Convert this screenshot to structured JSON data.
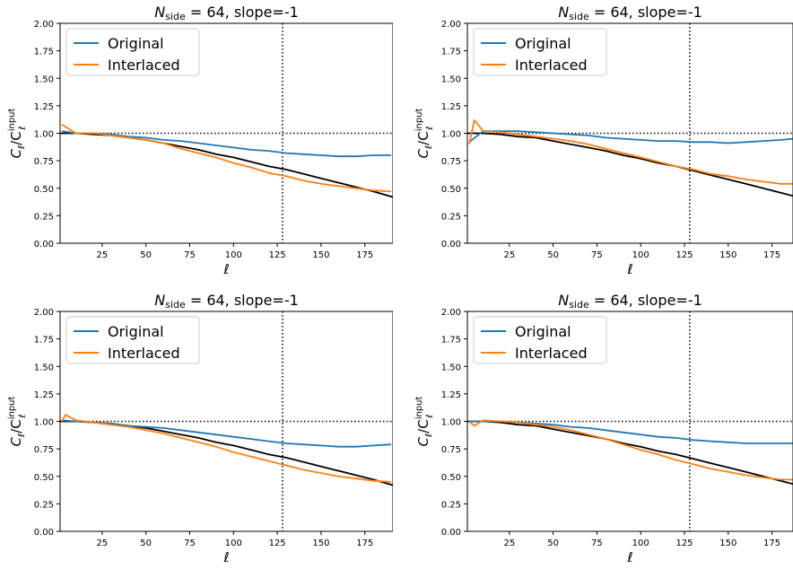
{
  "chart_data": [
    {
      "type": "line",
      "title_main": "N",
      "title_sub": "side",
      "title_rest": " = 64, slope=-1",
      "xlabel": "ℓ",
      "ylabel_main": "C",
      "ylabel_sub": "ℓ",
      "ylabel_sep": "/C",
      "ylabel_sup": "input",
      "ylabel_sub2": "ℓ",
      "xlim": [
        1,
        191
      ],
      "ylim": [
        0,
        2
      ],
      "xticks": [
        "25",
        "50",
        "75",
        "100",
        "125",
        "150",
        "175"
      ],
      "yticks": [
        "0.00",
        "0.25",
        "0.50",
        "0.75",
        "1.00",
        "1.25",
        "1.50",
        "1.75",
        "2.00"
      ],
      "legend_position": "top-left",
      "reference_lines": {
        "hline_y": 1.0,
        "vline_x": 128
      },
      "series": [
        {
          "name": "Original",
          "color": "#1f77b4",
          "x": [
            2,
            10,
            20,
            30,
            40,
            50,
            60,
            70,
            80,
            90,
            100,
            110,
            120,
            130,
            140,
            150,
            160,
            170,
            180,
            190
          ],
          "y": [
            1.02,
            1.0,
            1.0,
            0.99,
            0.97,
            0.96,
            0.94,
            0.93,
            0.91,
            0.89,
            0.87,
            0.85,
            0.84,
            0.82,
            0.81,
            0.8,
            0.79,
            0.79,
            0.8,
            0.8
          ]
        },
        {
          "name": "Interlaced",
          "color": "#ff7f0e",
          "x": [
            2,
            10,
            20,
            30,
            40,
            50,
            60,
            70,
            80,
            90,
            100,
            110,
            120,
            130,
            140,
            150,
            160,
            170,
            180,
            190
          ],
          "y": [
            1.08,
            1.0,
            1.0,
            0.98,
            0.96,
            0.94,
            0.91,
            0.86,
            0.82,
            0.78,
            0.73,
            0.69,
            0.64,
            0.61,
            0.57,
            0.54,
            0.52,
            0.5,
            0.48,
            0.47
          ]
        },
        {
          "name": "",
          "color": "#000000",
          "x": [
            1,
            10,
            20,
            30,
            40,
            50,
            60,
            70,
            80,
            90,
            100,
            110,
            120,
            130,
            140,
            150,
            160,
            170,
            180,
            191
          ],
          "y": [
            1.0,
            1.0,
            0.99,
            0.98,
            0.96,
            0.94,
            0.91,
            0.88,
            0.85,
            0.81,
            0.78,
            0.74,
            0.7,
            0.67,
            0.63,
            0.59,
            0.55,
            0.51,
            0.47,
            0.42
          ]
        }
      ]
    },
    {
      "type": "line",
      "title_main": "N",
      "title_sub": "side",
      "title_rest": " = 64, slope=-1",
      "xlabel": "ℓ",
      "ylabel_main": "C",
      "ylabel_sub": "ℓ",
      "ylabel_sep": "/C",
      "ylabel_sup": "input",
      "ylabel_sub2": "ℓ",
      "xlim": [
        1,
        187
      ],
      "ylim": [
        0,
        2
      ],
      "xticks": [
        "25",
        "50",
        "75",
        "100",
        "125",
        "150",
        "175"
      ],
      "yticks": [
        "0.00",
        "0.25",
        "0.50",
        "0.75",
        "1.00",
        "1.25",
        "1.50",
        "1.75",
        "2.00"
      ],
      "legend_position": "top-left",
      "reference_lines": {
        "hline_y": 1.0,
        "vline_x": 128
      },
      "series": [
        {
          "name": "Original",
          "color": "#1f77b4",
          "x": [
            2,
            10,
            20,
            30,
            40,
            50,
            60,
            70,
            80,
            90,
            100,
            110,
            120,
            130,
            140,
            150,
            160,
            170,
            180,
            187
          ],
          "y": [
            0.92,
            1.02,
            1.02,
            1.02,
            1.01,
            1.0,
            0.99,
            0.98,
            0.96,
            0.95,
            0.94,
            0.93,
            0.93,
            0.92,
            0.92,
            0.91,
            0.92,
            0.93,
            0.94,
            0.95
          ]
        },
        {
          "name": "Interlaced",
          "color": "#ff7f0e",
          "x": [
            2,
            5,
            10,
            20,
            30,
            40,
            50,
            60,
            70,
            80,
            90,
            100,
            110,
            120,
            130,
            140,
            150,
            160,
            170,
            180,
            187
          ],
          "y": [
            0.9,
            1.12,
            1.02,
            1.01,
            0.99,
            0.97,
            0.95,
            0.93,
            0.9,
            0.86,
            0.82,
            0.78,
            0.74,
            0.7,
            0.67,
            0.63,
            0.61,
            0.58,
            0.56,
            0.54,
            0.54
          ]
        },
        {
          "name": "",
          "color": "#000000",
          "x": [
            1,
            10,
            20,
            30,
            40,
            50,
            60,
            70,
            80,
            90,
            100,
            110,
            120,
            130,
            140,
            150,
            160,
            170,
            180,
            187
          ],
          "y": [
            1.0,
            1.0,
            0.99,
            0.97,
            0.96,
            0.93,
            0.9,
            0.87,
            0.84,
            0.8,
            0.77,
            0.73,
            0.7,
            0.66,
            0.62,
            0.58,
            0.54,
            0.5,
            0.46,
            0.43
          ]
        }
      ]
    },
    {
      "type": "line",
      "title_main": "N",
      "title_sub": "side",
      "title_rest": " = 64, slope=-1",
      "xlabel": "ℓ",
      "ylabel_main": "C",
      "ylabel_sub": "ℓ",
      "ylabel_sep": "/C",
      "ylabel_sup": "input",
      "ylabel_sub2": "ℓ",
      "xlim": [
        1,
        191
      ],
      "ylim": [
        0,
        2
      ],
      "xticks": [
        "25",
        "50",
        "75",
        "100",
        "125",
        "150",
        "175"
      ],
      "yticks": [
        "0.00",
        "0.25",
        "0.50",
        "0.75",
        "1.00",
        "1.25",
        "1.50",
        "1.75",
        "2.00"
      ],
      "legend_position": "top-left",
      "reference_lines": {
        "hline_y": 1.0,
        "vline_x": 128
      },
      "series": [
        {
          "name": "Original",
          "color": "#1f77b4",
          "x": [
            2,
            10,
            20,
            30,
            40,
            50,
            60,
            70,
            80,
            90,
            100,
            110,
            120,
            130,
            140,
            150,
            160,
            170,
            180,
            190
          ],
          "y": [
            1.01,
            1.0,
            0.99,
            0.98,
            0.96,
            0.95,
            0.94,
            0.92,
            0.9,
            0.88,
            0.86,
            0.84,
            0.82,
            0.8,
            0.79,
            0.78,
            0.77,
            0.77,
            0.78,
            0.79
          ]
        },
        {
          "name": "Interlaced",
          "color": "#ff7f0e",
          "x": [
            2,
            4,
            10,
            20,
            30,
            40,
            50,
            60,
            70,
            80,
            90,
            100,
            110,
            120,
            130,
            140,
            150,
            160,
            170,
            180,
            190
          ],
          "y": [
            1.0,
            1.06,
            1.01,
            0.99,
            0.97,
            0.95,
            0.92,
            0.89,
            0.85,
            0.81,
            0.77,
            0.72,
            0.68,
            0.64,
            0.6,
            0.56,
            0.53,
            0.5,
            0.48,
            0.46,
            0.45
          ]
        },
        {
          "name": "",
          "color": "#000000",
          "x": [
            1,
            10,
            20,
            30,
            40,
            50,
            60,
            70,
            80,
            90,
            100,
            110,
            120,
            130,
            140,
            150,
            160,
            170,
            180,
            191
          ],
          "y": [
            1.0,
            1.0,
            0.99,
            0.98,
            0.96,
            0.94,
            0.91,
            0.88,
            0.85,
            0.81,
            0.78,
            0.74,
            0.7,
            0.67,
            0.63,
            0.59,
            0.55,
            0.51,
            0.47,
            0.42
          ]
        }
      ]
    },
    {
      "type": "line",
      "title_main": "N",
      "title_sub": "side",
      "title_rest": " = 64, slope=-1",
      "xlabel": "ℓ",
      "ylabel_main": "C",
      "ylabel_sub": "ℓ",
      "ylabel_sep": "/C",
      "ylabel_sup": "input",
      "ylabel_sub2": "ℓ",
      "xlim": [
        1,
        187
      ],
      "ylim": [
        0,
        2
      ],
      "xticks": [
        "25",
        "50",
        "75",
        "100",
        "125",
        "150",
        "175"
      ],
      "yticks": [
        "0.00",
        "0.25",
        "0.50",
        "0.75",
        "1.00",
        "1.25",
        "1.50",
        "1.75",
        "2.00"
      ],
      "legend_position": "top-left",
      "reference_lines": {
        "hline_y": 1.0,
        "vline_x": 128
      },
      "series": [
        {
          "name": "Original",
          "color": "#1f77b4",
          "x": [
            2,
            10,
            20,
            30,
            40,
            50,
            60,
            70,
            80,
            90,
            100,
            110,
            120,
            130,
            140,
            150,
            160,
            170,
            180,
            187
          ],
          "y": [
            1.0,
            1.0,
            1.0,
            0.99,
            0.98,
            0.97,
            0.95,
            0.94,
            0.92,
            0.9,
            0.88,
            0.86,
            0.85,
            0.83,
            0.82,
            0.81,
            0.8,
            0.8,
            0.8,
            0.8
          ]
        },
        {
          "name": "Interlaced",
          "color": "#ff7f0e",
          "x": [
            2,
            5,
            10,
            20,
            30,
            40,
            50,
            60,
            70,
            80,
            90,
            100,
            110,
            120,
            130,
            140,
            150,
            160,
            170,
            180,
            187
          ],
          "y": [
            1.0,
            0.96,
            1.01,
            1.0,
            0.99,
            0.97,
            0.95,
            0.92,
            0.88,
            0.84,
            0.79,
            0.74,
            0.7,
            0.65,
            0.61,
            0.57,
            0.54,
            0.51,
            0.49,
            0.47,
            0.47
          ]
        },
        {
          "name": "",
          "color": "#000000",
          "x": [
            1,
            10,
            20,
            30,
            40,
            50,
            60,
            70,
            80,
            90,
            100,
            110,
            120,
            130,
            140,
            150,
            160,
            170,
            180,
            187
          ],
          "y": [
            1.0,
            1.0,
            0.99,
            0.97,
            0.96,
            0.93,
            0.9,
            0.87,
            0.84,
            0.8,
            0.77,
            0.73,
            0.7,
            0.66,
            0.62,
            0.58,
            0.54,
            0.5,
            0.46,
            0.43
          ]
        }
      ]
    }
  ]
}
